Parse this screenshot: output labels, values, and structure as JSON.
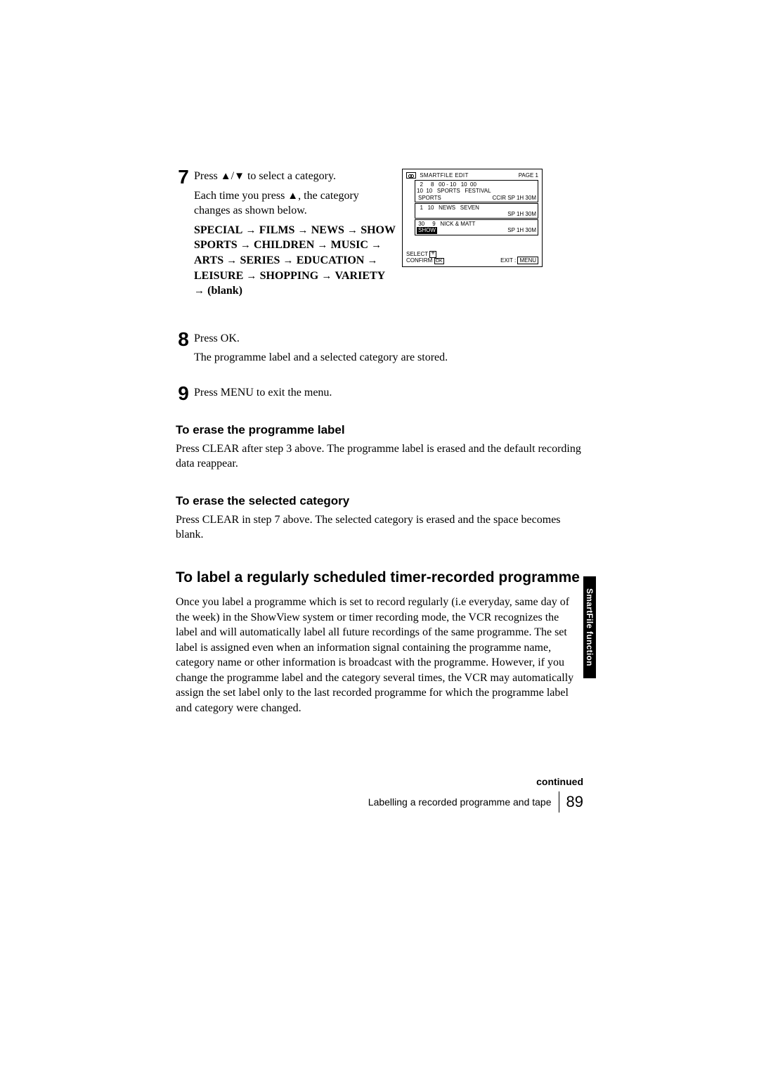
{
  "step7": {
    "heading": "Press ",
    "heading_mid": "/",
    "heading_after": " to select a category.",
    "p1a": "Each time you press ",
    "p1b": ", the category changes as shown below.",
    "chain": {
      "parts": [
        "SPECIAL",
        "FILMS",
        "NEWS",
        "SHOW SPORTS",
        "CHILDREN",
        "MUSIC",
        "ARTS",
        "SERIES",
        "EDUCATION",
        "LEISURE",
        "SHOPPING",
        "VARIETY",
        "(blank)"
      ]
    }
  },
  "osd": {
    "title": "SMARTFILE  EDIT",
    "page": "PAGE 1",
    "recs": [
      {
        "line1": "  2     8   00 - 10   10  00",
        "line2a": "10  10   SPORTS   FESTIVAL",
        "cat": "SPORTS",
        "catInv": false,
        "right": "CCIR   SP  1H 30M"
      },
      {
        "line1": "  1   10   NEWS   SEVEN",
        "cat": "",
        "catInv": false,
        "right": "SP  1H 30M"
      },
      {
        "line1": " 30     9   NICK & MATT",
        "cat": "SHOW",
        "catInv": true,
        "right": "SP  1H 30M"
      }
    ],
    "select": "SELECT",
    "confirm": "CONFIRM",
    "ok": "OK",
    "exit": "EXIT  :",
    "menu": "MENU"
  },
  "step8": {
    "l1": "Press OK.",
    "l2": "The programme label and a selected category are stored."
  },
  "step9": {
    "l1": "Press MENU to exit the menu."
  },
  "erase_label_h": "To erase the programme label",
  "erase_label_p": "Press CLEAR after step 3 above. The programme label is erased and the default recording data reappear.",
  "erase_cat_h": "To erase the selected category",
  "erase_cat_p": "Press CLEAR in step 7 above. The selected category is erased and the space becomes blank.",
  "h2": "To label a regularly scheduled timer-recorded programme",
  "bigpara": "Once you label a programme which is set to record regularly (i.e everyday, same day of the week) in the ShowView system or timer recording mode, the VCR recognizes the label and will automatically label all future recordings of the same programme. The set label is assigned even when an information signal containing the programme name, category name or other information is broadcast with the programme. However, if you change the programme label and the category several times, the VCR may automatically assign the set label only to the last recorded programme for which the programme label and category were changed.",
  "sidetab": "SmartFile function",
  "continued": "continued",
  "footer_text": "Labelling a recorded programme and tape",
  "page_number": "89"
}
